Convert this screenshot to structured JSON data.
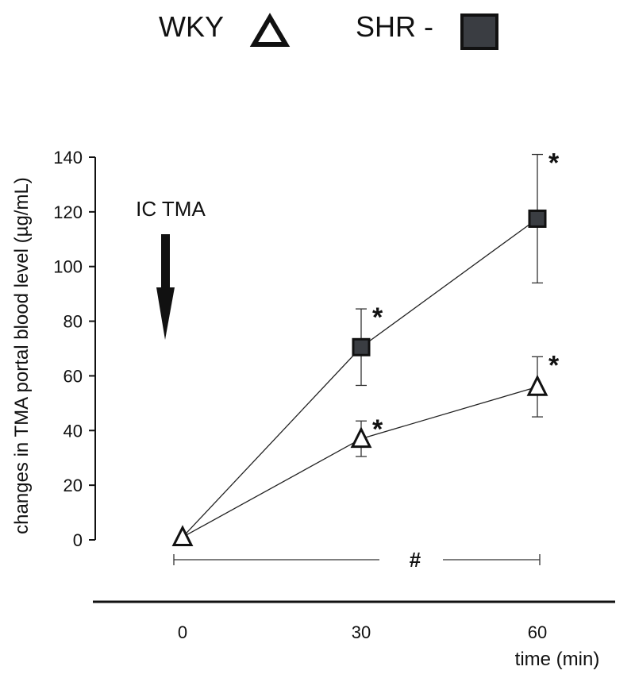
{
  "chart_data": {
    "type": "line",
    "title": "",
    "xlabel": "time (min)",
    "ylabel": "changes in TMA portal blood level (µg/mL)",
    "x": [
      0,
      30,
      60
    ],
    "x_tick_labels": [
      "0",
      "30",
      "60"
    ],
    "ylim": [
      0,
      140
    ],
    "y_ticks": [
      0,
      20,
      40,
      60,
      80,
      100,
      120,
      140
    ],
    "y_tick_labels": [
      "0",
      "20",
      "40",
      "60",
      "80",
      "100",
      "120",
      "140"
    ],
    "grid": false,
    "legend_position": "top",
    "series": [
      {
        "name": "WKY",
        "legend_label": "WKY",
        "marker": "open-triangle",
        "color": "#ffffff",
        "values": [
          1,
          37,
          56
        ],
        "errors": [
          0,
          6.5,
          11
        ],
        "significance": [
          "",
          "*",
          "*"
        ]
      },
      {
        "name": "SHR",
        "legend_label": "SHR -",
        "marker": "filled-square",
        "color": "#3a3d42",
        "values": [
          1,
          70.5,
          117.5
        ],
        "errors": [
          0,
          14,
          23.5
        ],
        "significance": [
          "",
          "*",
          "*"
        ]
      }
    ],
    "annotations": {
      "arrow_label": "IC TMA",
      "bracket_label": "#"
    }
  }
}
